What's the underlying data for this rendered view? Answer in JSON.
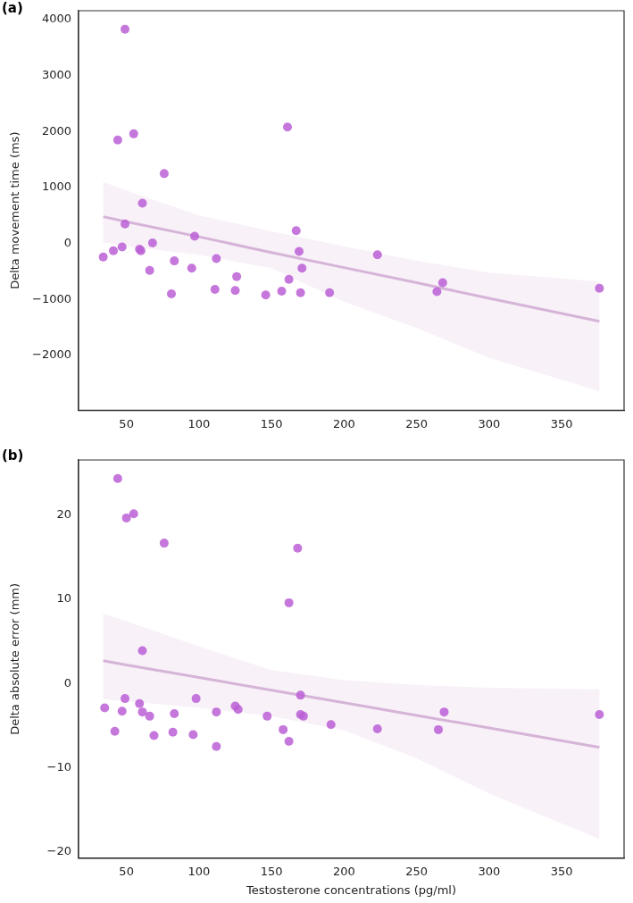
{
  "chart_data": [
    {
      "type": "scatter",
      "title": "(a)",
      "ylabel": "Delta movement time (ms)",
      "xlim": [
        17,
        393
      ],
      "xticks": [
        50,
        100,
        150,
        200,
        250,
        300,
        350
      ],
      "ylim": [
        -2980,
        4160
      ],
      "yticks": [
        -2000,
        -1000,
        0,
        1000,
        2000,
        3000,
        4000
      ],
      "series": [
        {
          "marker": "circle",
          "color": "#bb5fd6",
          "x": [
            34,
            41,
            44,
            47,
            49,
            49,
            55,
            59,
            60,
            61,
            66,
            68,
            76,
            81,
            83,
            95,
            97,
            111,
            112,
            125,
            126,
            146,
            157,
            161,
            162,
            167,
            169,
            170,
            171,
            190,
            223,
            264,
            268,
            376
          ],
          "values": [
            -240,
            -130,
            1850,
            -60,
            350,
            3830,
            1960,
            -100,
            -130,
            720,
            -480,
            10,
            1250,
            -900,
            -310,
            -440,
            130,
            -820,
            -270,
            -840,
            -590,
            -920,
            -850,
            2080,
            -640,
            230,
            -140,
            -880,
            -440,
            -880,
            -200,
            -860,
            -700,
            -800
          ]
        },
        {
          "type": "line",
          "marker": "none",
          "color": "#d6b4d8",
          "x": [
            34,
            50,
            100,
            150,
            200,
            250,
            300,
            376
          ],
          "values": [
            480,
            390,
            120,
            -160,
            -430,
            -700,
            -980,
            -1390
          ],
          "upper": [
            1100,
            950,
            500,
            220,
            -50,
            -310,
            -520,
            -680
          ],
          "lower": [
            20,
            -50,
            -200,
            -440,
            -1040,
            -1510,
            -2040,
            -2640
          ]
        }
      ]
    },
    {
      "type": "scatter",
      "title": "(b)",
      "xlabel": "Testosterone concentrations (pg/ml)",
      "ylabel": "Delta absolute error (mm)",
      "xlim": [
        17,
        393
      ],
      "xticks": [
        50,
        100,
        150,
        200,
        250,
        300,
        350
      ],
      "ylim": [
        -20.8,
        26.6
      ],
      "yticks": [
        -20,
        -10,
        0,
        10,
        20
      ],
      "series": [
        {
          "marker": "circle",
          "color": "#bb5fd6",
          "x": [
            35,
            42,
            44,
            47,
            49,
            50,
            55,
            59,
            61,
            61,
            66,
            69,
            76,
            82,
            83,
            96,
            98,
            112,
            112,
            125,
            127,
            147,
            158,
            162,
            162,
            168,
            170,
            170,
            172,
            191,
            223,
            265,
            269,
            376
          ],
          "values": [
            -2.9,
            -5.7,
            24.4,
            -3.3,
            -1.8,
            19.7,
            20.2,
            -2.4,
            -3.4,
            3.9,
            -3.9,
            -6.2,
            16.7,
            -5.8,
            -3.6,
            -6.1,
            -1.8,
            -3.4,
            -7.5,
            -2.7,
            -3.1,
            -3.9,
            -5.5,
            -6.9,
            9.6,
            16.1,
            -1.4,
            -3.7,
            -3.9,
            -4.9,
            -5.4,
            -5.5,
            -3.4,
            -3.7
          ]
        },
        {
          "type": "line",
          "marker": "none",
          "color": "#d6b4d8",
          "x": [
            34,
            50,
            100,
            150,
            200,
            250,
            300,
            376
          ],
          "values": [
            2.7,
            2.2,
            0.7,
            -0.8,
            -2.3,
            -3.8,
            -5.3,
            -7.6
          ],
          "upper": [
            8.3,
            7.4,
            4.4,
            1.6,
            0.4,
            -0.2,
            -0.5,
            -0.7
          ],
          "lower": [
            -1.9,
            -2.1,
            -2.9,
            -3.9,
            -5.6,
            -8.9,
            -13.1,
            -18.5
          ]
        }
      ]
    }
  ]
}
